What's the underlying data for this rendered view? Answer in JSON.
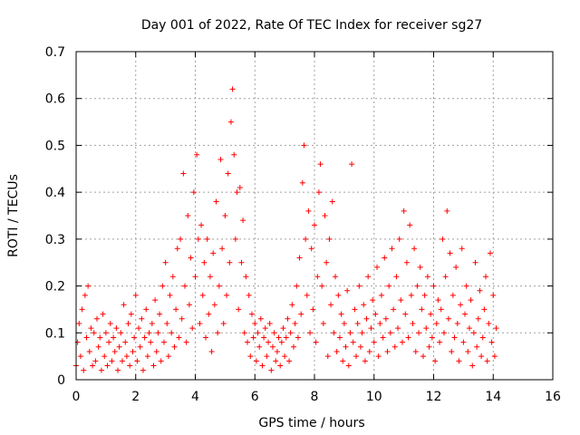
{
  "chart_data": {
    "type": "scatter",
    "title": "Day 001 of 2022, Rate Of TEC Index for receiver sg27",
    "xlabel": "GPS time / hours",
    "ylabel": "ROTI / TECUs",
    "xlim": [
      0,
      16
    ],
    "ylim": [
      0,
      0.7
    ],
    "x_ticks": [
      0,
      2,
      4,
      6,
      8,
      10,
      12,
      14,
      16
    ],
    "x_tick_labels": [
      "0",
      "2",
      "4",
      "6",
      "8",
      "10",
      "12",
      "14",
      "16"
    ],
    "y_ticks": [
      0,
      0.1,
      0.2,
      0.3,
      0.4,
      0.5,
      0.6,
      0.7
    ],
    "y_tick_labels": [
      "0",
      "0.1",
      "0.2",
      "0.3",
      "0.4",
      "0.5",
      "0.6",
      "0.7"
    ],
    "grid": true,
    "marker": "+",
    "series_color": "#ff0000",
    "series": [
      {
        "name": "ROTI",
        "points": [
          [
            0.0,
            0.03
          ],
          [
            0.05,
            0.08
          ],
          [
            0.1,
            0.12
          ],
          [
            0.15,
            0.05
          ],
          [
            0.2,
            0.15
          ],
          [
            0.25,
            0.02
          ],
          [
            0.3,
            0.18
          ],
          [
            0.35,
            0.09
          ],
          [
            0.4,
            0.2
          ],
          [
            0.45,
            0.06
          ],
          [
            0.5,
            0.11
          ],
          [
            0.55,
            0.03
          ],
          [
            0.6,
            0.1
          ],
          [
            0.65,
            0.04
          ],
          [
            0.7,
            0.13
          ],
          [
            0.75,
            0.07
          ],
          [
            0.8,
            0.09
          ],
          [
            0.85,
            0.02
          ],
          [
            0.9,
            0.14
          ],
          [
            0.95,
            0.05
          ],
          [
            1.0,
            0.1
          ],
          [
            1.05,
            0.03
          ],
          [
            1.1,
            0.08
          ],
          [
            1.15,
            0.12
          ],
          [
            1.2,
            0.04
          ],
          [
            1.25,
            0.09
          ],
          [
            1.3,
            0.06
          ],
          [
            1.35,
            0.11
          ],
          [
            1.4,
            0.02
          ],
          [
            1.45,
            0.07
          ],
          [
            1.5,
            0.1
          ],
          [
            1.55,
            0.04
          ],
          [
            1.6,
            0.16
          ],
          [
            1.65,
            0.08
          ],
          [
            1.7,
            0.05
          ],
          [
            1.75,
            0.12
          ],
          [
            1.8,
            0.03
          ],
          [
            1.85,
            0.14
          ],
          [
            1.9,
            0.06
          ],
          [
            1.95,
            0.09
          ],
          [
            2.0,
            0.18
          ],
          [
            2.05,
            0.04
          ],
          [
            2.1,
            0.11
          ],
          [
            2.15,
            0.07
          ],
          [
            2.2,
            0.13
          ],
          [
            2.25,
            0.02
          ],
          [
            2.3,
            0.09
          ],
          [
            2.35,
            0.15
          ],
          [
            2.4,
            0.05
          ],
          [
            2.45,
            0.1
          ],
          [
            2.5,
            0.08
          ],
          [
            2.55,
            0.12
          ],
          [
            2.6,
            0.03
          ],
          [
            2.65,
            0.17
          ],
          [
            2.7,
            0.06
          ],
          [
            2.75,
            0.1
          ],
          [
            2.8,
            0.14
          ],
          [
            2.85,
            0.04
          ],
          [
            2.9,
            0.2
          ],
          [
            2.95,
            0.08
          ],
          [
            3.0,
            0.25
          ],
          [
            3.05,
            0.12
          ],
          [
            3.1,
            0.05
          ],
          [
            3.15,
            0.18
          ],
          [
            3.2,
            0.1
          ],
          [
            3.25,
            0.22
          ],
          [
            3.3,
            0.07
          ],
          [
            3.35,
            0.15
          ],
          [
            3.4,
            0.28
          ],
          [
            3.45,
            0.09
          ],
          [
            3.5,
            0.3
          ],
          [
            3.55,
            0.13
          ],
          [
            3.6,
            0.44
          ],
          [
            3.65,
            0.2
          ],
          [
            3.7,
            0.08
          ],
          [
            3.75,
            0.35
          ],
          [
            3.8,
            0.16
          ],
          [
            3.85,
            0.26
          ],
          [
            3.9,
            0.11
          ],
          [
            3.95,
            0.4
          ],
          [
            4.0,
            0.22
          ],
          [
            4.05,
            0.48
          ],
          [
            4.1,
            0.3
          ],
          [
            4.15,
            0.12
          ],
          [
            4.2,
            0.33
          ],
          [
            4.25,
            0.18
          ],
          [
            4.3,
            0.25
          ],
          [
            4.35,
            0.09
          ],
          [
            4.4,
            0.3
          ],
          [
            4.45,
            0.14
          ],
          [
            4.5,
            0.22
          ],
          [
            4.55,
            0.06
          ],
          [
            4.6,
            0.27
          ],
          [
            4.65,
            0.16
          ],
          [
            4.7,
            0.38
          ],
          [
            4.75,
            0.1
          ],
          [
            4.8,
            0.2
          ],
          [
            4.85,
            0.47
          ],
          [
            4.9,
            0.28
          ],
          [
            4.95,
            0.12
          ],
          [
            5.0,
            0.35
          ],
          [
            5.05,
            0.18
          ],
          [
            5.1,
            0.44
          ],
          [
            5.15,
            0.25
          ],
          [
            5.2,
            0.55
          ],
          [
            5.25,
            0.62
          ],
          [
            5.3,
            0.48
          ],
          [
            5.35,
            0.3
          ],
          [
            5.4,
            0.4
          ],
          [
            5.45,
            0.15
          ],
          [
            5.5,
            0.41
          ],
          [
            5.55,
            0.25
          ],
          [
            5.6,
            0.34
          ],
          [
            5.65,
            0.1
          ],
          [
            5.7,
            0.22
          ],
          [
            5.75,
            0.08
          ],
          [
            5.8,
            0.18
          ],
          [
            5.85,
            0.05
          ],
          [
            5.9,
            0.14
          ],
          [
            5.95,
            0.09
          ],
          [
            6.0,
            0.12
          ],
          [
            6.05,
            0.04
          ],
          [
            6.1,
            0.1
          ],
          [
            6.15,
            0.07
          ],
          [
            6.2,
            0.13
          ],
          [
            6.25,
            0.03
          ],
          [
            6.3,
            0.09
          ],
          [
            6.35,
            0.11
          ],
          [
            6.4,
            0.05
          ],
          [
            6.45,
            0.08
          ],
          [
            6.5,
            0.12
          ],
          [
            6.55,
            0.02
          ],
          [
            6.6,
            0.07
          ],
          [
            6.65,
            0.1
          ],
          [
            6.7,
            0.04
          ],
          [
            6.75,
            0.06
          ],
          [
            6.8,
            0.09
          ],
          [
            6.85,
            0.03
          ],
          [
            6.9,
            0.08
          ],
          [
            6.95,
            0.11
          ],
          [
            7.0,
            0.05
          ],
          [
            7.05,
            0.09
          ],
          [
            7.1,
            0.13
          ],
          [
            7.15,
            0.04
          ],
          [
            7.2,
            0.1
          ],
          [
            7.25,
            0.16
          ],
          [
            7.3,
            0.07
          ],
          [
            7.35,
            0.12
          ],
          [
            7.4,
            0.2
          ],
          [
            7.45,
            0.09
          ],
          [
            7.5,
            0.26
          ],
          [
            7.55,
            0.14
          ],
          [
            7.6,
            0.42
          ],
          [
            7.65,
            0.5
          ],
          [
            7.7,
            0.3
          ],
          [
            7.75,
            0.18
          ],
          [
            7.8,
            0.36
          ],
          [
            7.85,
            0.1
          ],
          [
            7.9,
            0.28
          ],
          [
            7.95,
            0.15
          ],
          [
            8.0,
            0.33
          ],
          [
            8.05,
            0.08
          ],
          [
            8.1,
            0.22
          ],
          [
            8.15,
            0.4
          ],
          [
            8.2,
            0.46
          ],
          [
            8.25,
            0.2
          ],
          [
            8.3,
            0.12
          ],
          [
            8.35,
            0.35
          ],
          [
            8.4,
            0.25
          ],
          [
            8.45,
            0.05
          ],
          [
            8.5,
            0.3
          ],
          [
            8.55,
            0.16
          ],
          [
            8.6,
            0.38
          ],
          [
            8.65,
            0.1
          ],
          [
            8.7,
            0.22
          ],
          [
            8.75,
            0.06
          ],
          [
            8.8,
            0.18
          ],
          [
            8.85,
            0.09
          ],
          [
            8.9,
            0.14
          ],
          [
            8.95,
            0.04
          ],
          [
            9.0,
            0.12
          ],
          [
            9.05,
            0.07
          ],
          [
            9.1,
            0.19
          ],
          [
            9.15,
            0.03
          ],
          [
            9.2,
            0.1
          ],
          [
            9.25,
            0.46
          ],
          [
            9.3,
            0.08
          ],
          [
            9.35,
            0.15
          ],
          [
            9.4,
            0.05
          ],
          [
            9.45,
            0.12
          ],
          [
            9.5,
            0.2
          ],
          [
            9.55,
            0.07
          ],
          [
            9.6,
            0.1
          ],
          [
            9.65,
            0.16
          ],
          [
            9.7,
            0.04
          ],
          [
            9.75,
            0.13
          ],
          [
            9.8,
            0.22
          ],
          [
            9.85,
            0.06
          ],
          [
            9.9,
            0.11
          ],
          [
            9.95,
            0.17
          ],
          [
            10.0,
            0.08
          ],
          [
            10.05,
            0.14
          ],
          [
            10.1,
            0.24
          ],
          [
            10.15,
            0.05
          ],
          [
            10.2,
            0.12
          ],
          [
            10.25,
            0.18
          ],
          [
            10.3,
            0.09
          ],
          [
            10.35,
            0.26
          ],
          [
            10.4,
            0.13
          ],
          [
            10.45,
            0.06
          ],
          [
            10.5,
            0.2
          ],
          [
            10.55,
            0.1
          ],
          [
            10.6,
            0.28
          ],
          [
            10.65,
            0.15
          ],
          [
            10.7,
            0.07
          ],
          [
            10.75,
            0.22
          ],
          [
            10.8,
            0.11
          ],
          [
            10.85,
            0.3
          ],
          [
            10.9,
            0.17
          ],
          [
            10.95,
            0.08
          ],
          [
            11.0,
            0.36
          ],
          [
            11.05,
            0.14
          ],
          [
            11.1,
            0.25
          ],
          [
            11.15,
            0.09
          ],
          [
            11.2,
            0.33
          ],
          [
            11.25,
            0.18
          ],
          [
            11.3,
            0.12
          ],
          [
            11.35,
            0.28
          ],
          [
            11.4,
            0.06
          ],
          [
            11.45,
            0.2
          ],
          [
            11.5,
            0.1
          ],
          [
            11.55,
            0.24
          ],
          [
            11.6,
            0.15
          ],
          [
            11.65,
            0.05
          ],
          [
            11.7,
            0.18
          ],
          [
            11.75,
            0.11
          ],
          [
            11.8,
            0.22
          ],
          [
            11.85,
            0.07
          ],
          [
            11.9,
            0.14
          ],
          [
            11.95,
            0.09
          ],
          [
            12.0,
            0.2
          ],
          [
            12.05,
            0.04
          ],
          [
            12.1,
            0.12
          ],
          [
            12.15,
            0.17
          ],
          [
            12.2,
            0.08
          ],
          [
            12.25,
            0.15
          ],
          [
            12.3,
            0.3
          ],
          [
            12.35,
            0.1
          ],
          [
            12.4,
            0.22
          ],
          [
            12.45,
            0.36
          ],
          [
            12.5,
            0.13
          ],
          [
            12.55,
            0.27
          ],
          [
            12.6,
            0.06
          ],
          [
            12.65,
            0.18
          ],
          [
            12.7,
            0.09
          ],
          [
            12.75,
            0.24
          ],
          [
            12.8,
            0.12
          ],
          [
            12.85,
            0.04
          ],
          [
            12.9,
            0.16
          ],
          [
            12.95,
            0.28
          ],
          [
            13.0,
            0.08
          ],
          [
            13.05,
            0.14
          ],
          [
            13.1,
            0.2
          ],
          [
            13.15,
            0.06
          ],
          [
            13.2,
            0.11
          ],
          [
            13.25,
            0.17
          ],
          [
            13.3,
            0.03
          ],
          [
            13.35,
            0.1
          ],
          [
            13.4,
            0.25
          ],
          [
            13.45,
            0.07
          ],
          [
            13.5,
            0.13
          ],
          [
            13.55,
            0.19
          ],
          [
            13.6,
            0.05
          ],
          [
            13.65,
            0.09
          ],
          [
            13.7,
            0.15
          ],
          [
            13.75,
            0.22
          ],
          [
            13.8,
            0.04
          ],
          [
            13.85,
            0.12
          ],
          [
            13.9,
            0.27
          ],
          [
            13.95,
            0.08
          ],
          [
            14.0,
            0.18
          ],
          [
            14.05,
            0.05
          ],
          [
            14.1,
            0.11
          ]
        ]
      }
    ]
  }
}
